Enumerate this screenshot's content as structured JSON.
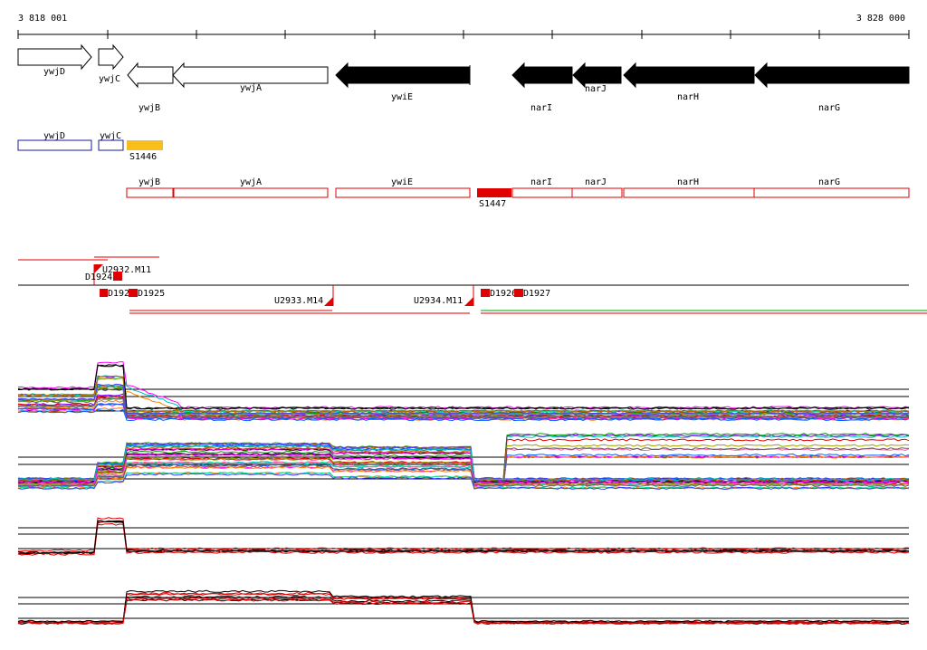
{
  "coordinates": {
    "start": "3 818 001",
    "end": "3 828 000"
  },
  "colors": {
    "feature_black": "#000000",
    "cds_blue": "#1a1a9e",
    "cds_red": "#e00000",
    "srna_orange": "#f7be1e",
    "transcript_green": "#00a000"
  },
  "genes": [
    {
      "name": "ywjD",
      "strand": "+",
      "filled": false
    },
    {
      "name": "ywjC",
      "strand": "+",
      "filled": false
    },
    {
      "name": "ywjB",
      "strand": "-",
      "filled": false
    },
    {
      "name": "ywjA",
      "strand": "-",
      "filled": false
    },
    {
      "name": "ywiE",
      "strand": "-",
      "filled": true
    },
    {
      "name": "narI",
      "strand": "-",
      "filled": true
    },
    {
      "name": "narJ",
      "strand": "-",
      "filled": true
    },
    {
      "name": "narH",
      "strand": "-",
      "filled": true
    },
    {
      "name": "narG",
      "strand": "-",
      "filled": true
    }
  ],
  "plus_cds": [
    {
      "name": "ywjD"
    },
    {
      "name": "ywjC"
    }
  ],
  "plus_srna": {
    "name": "S1446"
  },
  "minus_cds": [
    {
      "name": "ywjB"
    },
    {
      "name": "ywjA"
    },
    {
      "name": "ywiE"
    },
    {
      "name": "narI"
    },
    {
      "name": "narJ"
    },
    {
      "name": "narH"
    },
    {
      "name": "narG"
    }
  ],
  "minus_srna": {
    "name": "S1447"
  },
  "upshifts": [
    {
      "name": "U2932.M11"
    },
    {
      "name": "U2933.M14"
    },
    {
      "name": "U2934.M11"
    }
  ],
  "downshifts": [
    {
      "name": "D1924"
    },
    {
      "name": "D1925"
    },
    {
      "name": "D1926"
    },
    {
      "name": "D1927"
    },
    {
      "name": "D1925"
    }
  ],
  "downshift_short": "D192"
}
